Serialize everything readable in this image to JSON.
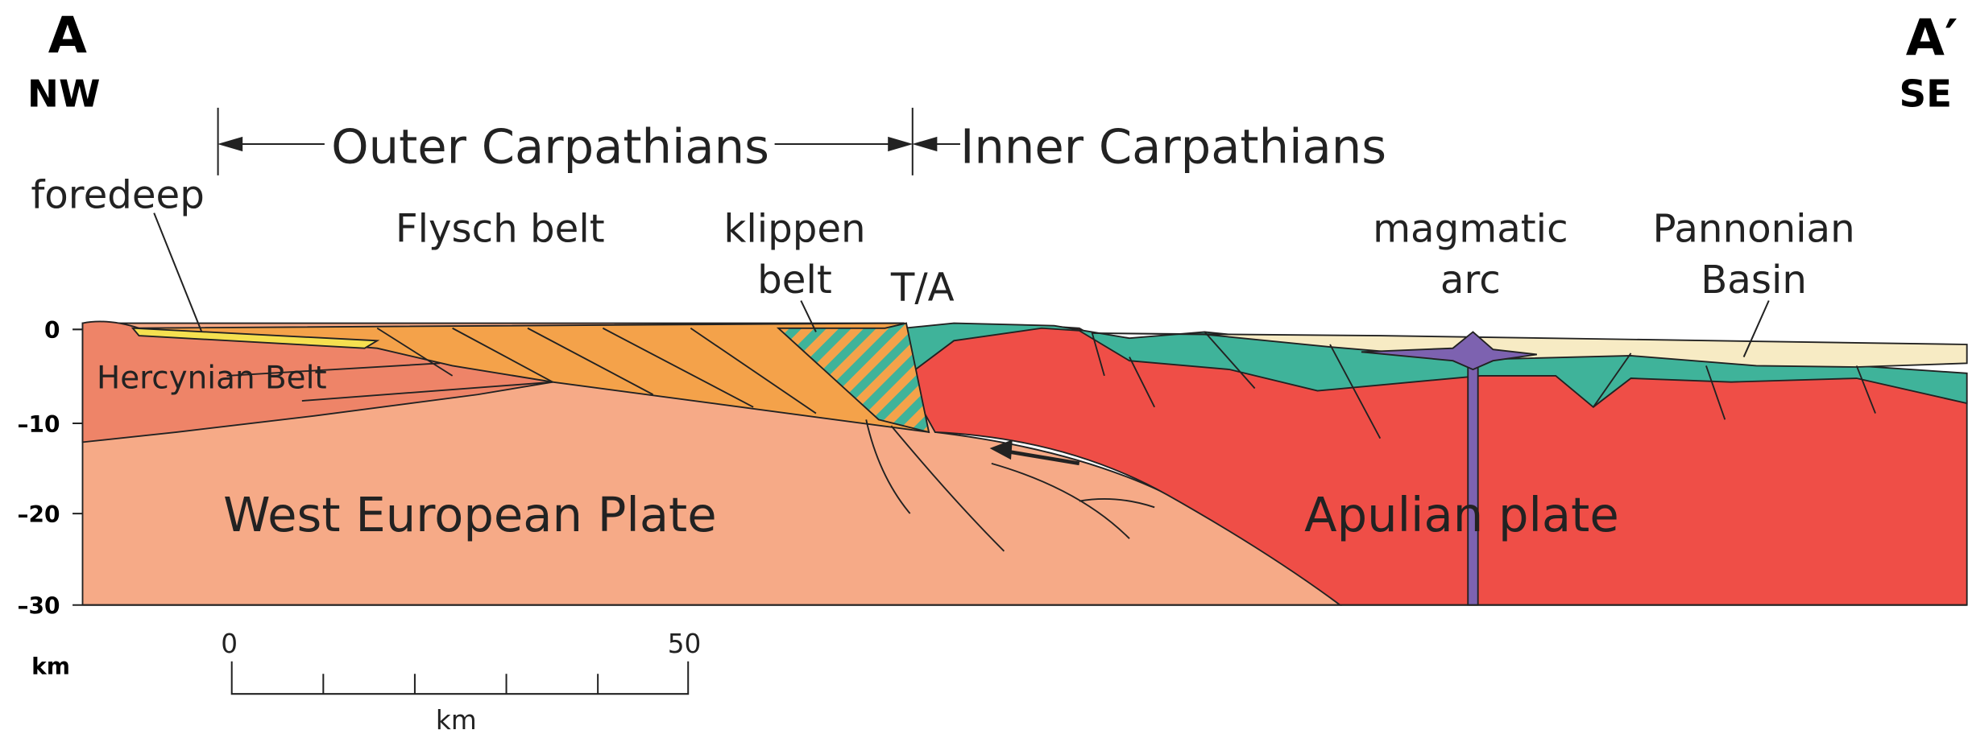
{
  "section": {
    "start": {
      "label": "A",
      "direction": "NW"
    },
    "end": {
      "label": "A′",
      "direction": "SE"
    }
  },
  "domains": {
    "outer": "Outer Carpathians",
    "inner": "Inner Carpathians"
  },
  "units": {
    "foredeep": "foredeep",
    "flysch": "Flysch  belt",
    "klippen": [
      "klippen",
      "belt"
    ],
    "boundary": "T/A",
    "magmatic": [
      "magmatic",
      "arc"
    ],
    "pannonian": [
      "Pannonian",
      "Basin"
    ],
    "hercynian": "Hercynian  Belt",
    "west_plate": "West  European  Plate",
    "apulian": "Apulian  plate"
  },
  "depth_axis": {
    "labels": [
      "0",
      "–10",
      "–20",
      "–30"
    ],
    "unit": "km"
  },
  "scale_bar": {
    "labels": [
      "0",
      "50"
    ],
    "unit": "km"
  }
}
